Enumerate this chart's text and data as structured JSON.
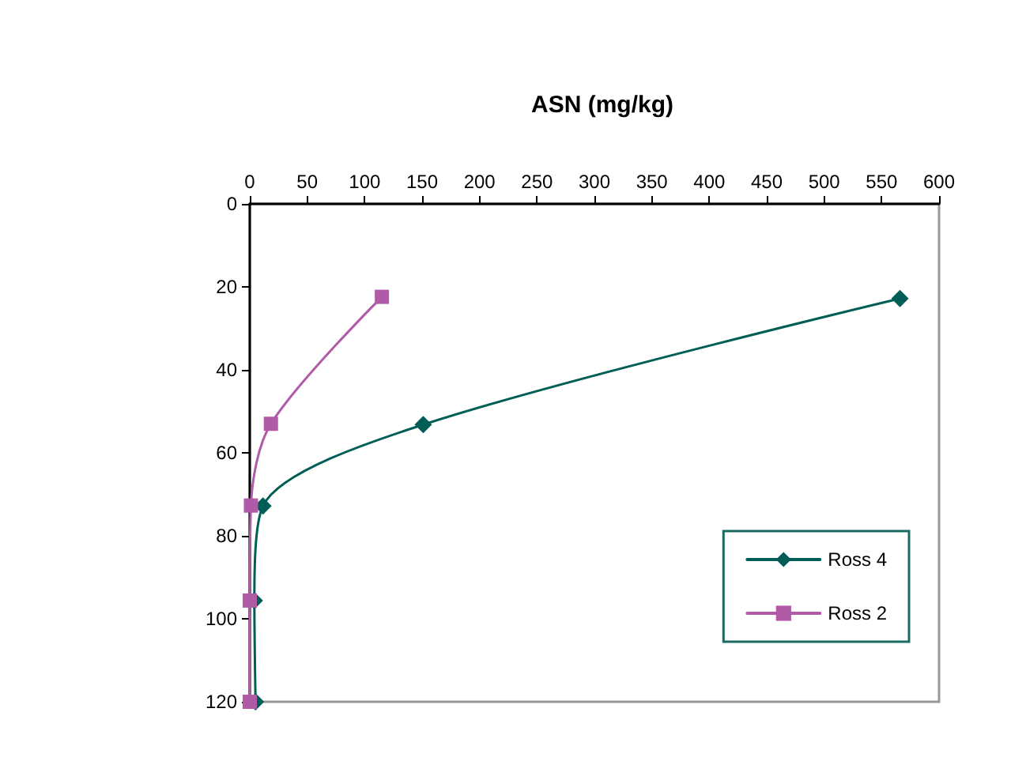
{
  "chart_data": {
    "type": "line",
    "title": "ASN (mg/kg)",
    "series": [
      {
        "name": "Ross 4",
        "color": "#005e55",
        "marker": "diamond",
        "x": [
          566,
          151,
          11.5,
          4,
          5
        ],
        "values": [
          22.8,
          53.2,
          72.8,
          95.6,
          120
        ]
      },
      {
        "name": "Ross 2",
        "color": "#b05aa8",
        "marker": "square",
        "x": [
          115,
          18.4,
          1,
          0,
          0
        ],
        "values": [
          22.4,
          53,
          72.7,
          95.6,
          120
        ]
      }
    ],
    "xlim": [
      0,
      600
    ],
    "xticks": [
      0,
      50,
      100,
      150,
      200,
      250,
      300,
      350,
      400,
      450,
      500,
      550,
      600
    ],
    "ylim": [
      120,
      0
    ],
    "yticks": [
      0,
      20,
      40,
      60,
      80,
      100,
      120
    ],
    "grid": false,
    "legend": "bottom right",
    "line_style": "solid"
  }
}
